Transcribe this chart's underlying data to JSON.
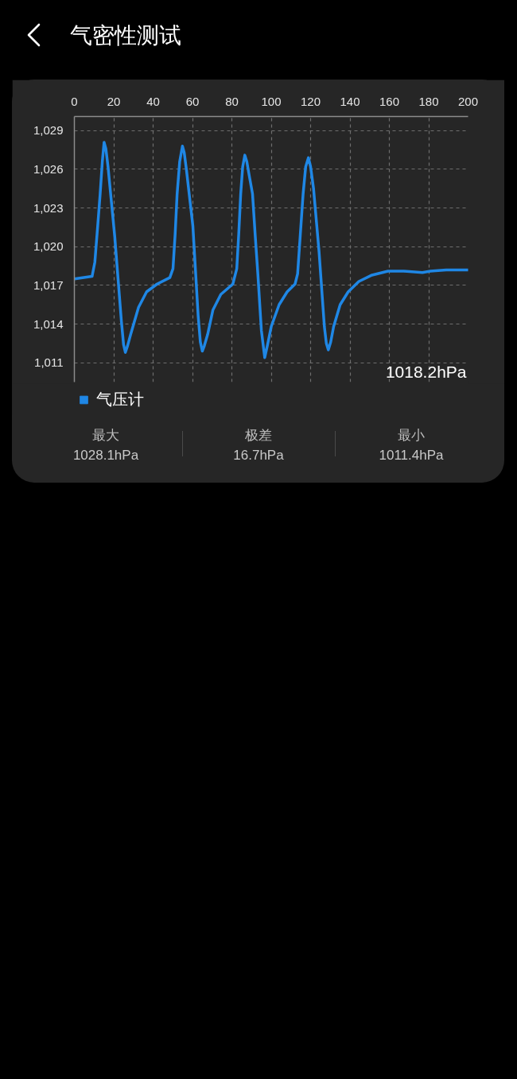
{
  "chart_data": {
    "type": "line",
    "title": "气密性测试",
    "x": [
      0,
      9.0,
      10.4,
      11.8,
      13.1,
      14.2,
      15.1,
      16.0,
      17.1,
      20.5,
      23.9,
      25.0,
      25.9,
      27.0,
      28.6,
      32.6,
      36.7,
      42.0,
      48.5,
      50.1,
      51.2,
      52.2,
      53.5,
      54.9,
      55.8,
      56.9,
      60.2,
      62.9,
      64.0,
      65.0,
      66.0,
      67.7,
      70.4,
      74.4,
      80.5,
      82.5,
      83.5,
      84.5,
      85.5,
      86.6,
      87.6,
      88.5,
      90.5,
      91.9,
      93.2,
      95.0,
      96.7,
      98.0,
      100.0,
      104.0,
      108.1,
      112.1,
      113.4,
      114.8,
      116.2,
      117.5,
      118.9,
      120.0,
      121.5,
      124.3,
      127.0,
      128.0,
      129.0,
      130.2,
      131.7,
      135.0,
      139.1,
      144.5,
      151.2,
      159.3,
      167.4,
      176.8,
      180.8,
      188.9,
      200
    ],
    "series": [
      {
        "name": "气压计",
        "color": "#1f87e5",
        "values": [
          1017.5,
          1017.7,
          1018.8,
          1021.5,
          1024.1,
          1026.6,
          1028.1,
          1027.6,
          1026.2,
          1020.8,
          1014.2,
          1012.4,
          1011.8,
          1012.3,
          1013.2,
          1015.3,
          1016.5,
          1017.1,
          1017.6,
          1018.3,
          1021.0,
          1024.1,
          1026.6,
          1027.8,
          1027.3,
          1026.0,
          1021.6,
          1014.6,
          1012.6,
          1011.9,
          1012.3,
          1013.2,
          1015.1,
          1016.3,
          1017.1,
          1018.3,
          1021.0,
          1024.1,
          1026.2,
          1027.1,
          1026.6,
          1025.8,
          1024.1,
          1020.8,
          1017.9,
          1013.5,
          1011.4,
          1012.3,
          1013.8,
          1015.5,
          1016.5,
          1017.1,
          1017.9,
          1021.0,
          1024.1,
          1026.2,
          1026.9,
          1026.2,
          1024.5,
          1019.6,
          1013.8,
          1012.5,
          1012.0,
          1012.6,
          1013.8,
          1015.5,
          1016.5,
          1017.3,
          1017.8,
          1018.1,
          1018.1,
          1018.0,
          1018.1,
          1018.2,
          1018.2
        ]
      }
    ],
    "xlim": [
      0,
      200
    ],
    "xticks": [
      0,
      20,
      40,
      60,
      80,
      100,
      120,
      140,
      160,
      180,
      200
    ],
    "ylim": [
      1009.5,
      1030.1
    ],
    "yticks": [
      {
        "value": 1011,
        "label": "1,011"
      },
      {
        "value": 1014,
        "label": "1,014"
      },
      {
        "value": 1017,
        "label": "1,017"
      },
      {
        "value": 1020,
        "label": "1,020"
      },
      {
        "value": 1023,
        "label": "1,023"
      },
      {
        "value": 1026,
        "label": "1,026"
      },
      {
        "value": 1029,
        "label": "1,029"
      }
    ],
    "grid": true,
    "legend": "bottom left",
    "marker": "none",
    "line_style": "solid",
    "annotations": [
      "1018.2hPa",
      "最大",
      "1028.1hPa",
      "极差",
      "16.7hPa",
      "最小",
      "1011.4hPa"
    ]
  }
}
